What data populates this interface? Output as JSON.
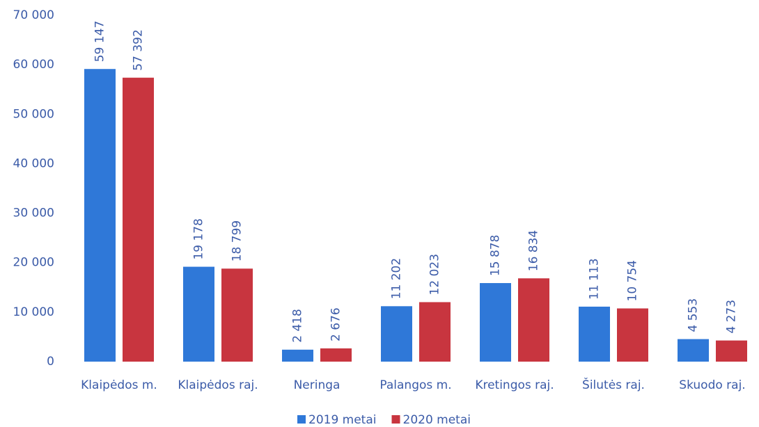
{
  "chart_data": {
    "type": "bar",
    "categories": [
      "Klaipėdos m.",
      "Klaipėdos raj.",
      "Neringa",
      "Palangos m.",
      "Kretingos raj.",
      "Šilutės raj.",
      "Skuodo raj."
    ],
    "series": [
      {
        "name": "2019 metai",
        "color": "#2f78d8",
        "values": [
          59147,
          19178,
          2418,
          11202,
          15878,
          11113,
          4553
        ],
        "value_labels": [
          "59 147",
          "19 178",
          "2 418",
          "11 202",
          "15 878",
          "11 113",
          "4 553"
        ]
      },
      {
        "name": "2020 metai",
        "color": "#c8353f",
        "values": [
          57392,
          18799,
          2676,
          12023,
          16834,
          10754,
          4273
        ],
        "value_labels": [
          "57 392",
          "18 799",
          "2 676",
          "12 023",
          "16 834",
          "10 754",
          "4 273"
        ]
      }
    ],
    "ylim": [
      0,
      70000
    ],
    "yticks": [
      0,
      {
        "value": 10000,
        "label": "10 000"
      },
      {
        "value": 20000,
        "label": "20 000"
      },
      {
        "value": 30000,
        "label": "30 000"
      },
      {
        "value": 40000,
        "label": "40 000"
      },
      {
        "value": 50000,
        "label": "50 000"
      },
      {
        "value": 60000,
        "label": "60 000"
      },
      {
        "value": 70000,
        "label": "70 000"
      }
    ],
    "grid": false,
    "legend": "bottom"
  }
}
